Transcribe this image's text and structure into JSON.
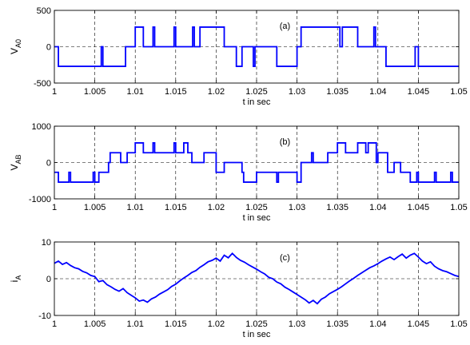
{
  "chart_data": [
    {
      "type": "line",
      "annotation": "(a)",
      "xlabel": "t in  sec",
      "ylabel": "V",
      "ylabel_sub": "A0",
      "xlim": [
        1,
        1.05
      ],
      "ylim": [
        -500,
        500
      ],
      "xticks": [
        1,
        1.005,
        1.01,
        1.015,
        1.02,
        1.025,
        1.03,
        1.035,
        1.04,
        1.045,
        1.05
      ],
      "xtick_labels": [
        "1",
        "1.005",
        "1.01",
        "1.015",
        "1.02",
        "1.025",
        "1.03",
        "1.035",
        "1.04",
        "1.045",
        "1.05"
      ],
      "yticks": [
        -500,
        0,
        500
      ],
      "ytick_labels": [
        "-500",
        "0",
        "500"
      ],
      "grid": true,
      "color": "#0000ff",
      "series": [
        {
          "x": [
            1.0,
            1.0005,
            1.0005,
            1.0058,
            1.0058,
            1.006,
            1.006,
            1.0088,
            1.0088,
            1.01,
            1.01,
            1.011,
            1.011,
            1.0122,
            1.0122,
            1.0124,
            1.0124,
            1.0148,
            1.0148,
            1.015,
            1.015,
            1.0171,
            1.0171,
            1.0173,
            1.0173,
            1.018,
            1.018,
            1.021,
            1.021,
            1.0225,
            1.0225,
            1.0232,
            1.0232,
            1.0246,
            1.0246,
            1.0248,
            1.0248,
            1.0275,
            1.0275,
            1.03,
            1.03,
            1.0305,
            1.0305,
            1.0353,
            1.0353,
            1.0356,
            1.0356,
            1.0375,
            1.0375,
            1.0395,
            1.0395,
            1.0397,
            1.0397,
            1.041,
            1.041,
            1.0446,
            1.0446,
            1.045,
            1.045,
            1.05
          ],
          "y": [
            0,
            0,
            -270,
            -270,
            0,
            0,
            -270,
            -270,
            0,
            0,
            270,
            270,
            0,
            0,
            270,
            270,
            0,
            0,
            270,
            270,
            0,
            0,
            270,
            270,
            0,
            0,
            270,
            270,
            0,
            0,
            -270,
            -270,
            0,
            0,
            -270,
            -270,
            0,
            0,
            -270,
            -270,
            0,
            0,
            270,
            270,
            0,
            0,
            270,
            270,
            0,
            0,
            270,
            270,
            0,
            0,
            -270,
            -270,
            0,
            0,
            -270,
            -270
          ]
        }
      ]
    },
    {
      "type": "line",
      "annotation": "(b)",
      "xlabel": "t in  sec",
      "ylabel": "V",
      "ylabel_sub": "AB",
      "xlim": [
        1,
        1.05
      ],
      "ylim": [
        -1000,
        1000
      ],
      "xticks": [
        1,
        1.005,
        1.01,
        1.015,
        1.02,
        1.025,
        1.03,
        1.035,
        1.04,
        1.045,
        1.05
      ],
      "xtick_labels": [
        "1",
        "1.005",
        "1.01",
        "1.015",
        "1.02",
        "1.025",
        "1.03",
        "1.035",
        "1.04",
        "1.045",
        "1.05"
      ],
      "yticks": [
        -1000,
        0,
        1000
      ],
      "ytick_labels": [
        "-1000",
        "0",
        "1000"
      ],
      "grid": true,
      "color": "#0000ff",
      "series": [
        {
          "x": [
            1.0,
            1.0005,
            1.0005,
            1.0018,
            1.0018,
            1.002,
            1.002,
            1.0048,
            1.0048,
            1.005,
            1.005,
            1.0055,
            1.0055,
            1.0067,
            1.0067,
            1.0069,
            1.0069,
            1.0082,
            1.0082,
            1.009,
            1.009,
            1.01,
            1.01,
            1.011,
            1.011,
            1.0122,
            1.0122,
            1.0124,
            1.0124,
            1.0148,
            1.0148,
            1.015,
            1.015,
            1.016,
            1.016,
            1.0165,
            1.0165,
            1.017,
            1.017,
            1.0185,
            1.0185,
            1.02,
            1.02,
            1.021,
            1.021,
            1.0232,
            1.0232,
            1.0234,
            1.0234,
            1.025,
            1.025,
            1.0275,
            1.0275,
            1.0277,
            1.0277,
            1.03,
            1.03,
            1.0305,
            1.0305,
            1.0318,
            1.0318,
            1.032,
            1.032,
            1.0338,
            1.0338,
            1.035,
            1.035,
            1.036,
            1.036,
            1.0375,
            1.0375,
            1.0385,
            1.0385,
            1.0388,
            1.0388,
            1.0398,
            1.0398,
            1.04,
            1.04,
            1.0412,
            1.0412,
            1.042,
            1.042,
            1.0428,
            1.0428,
            1.044,
            1.044,
            1.0448,
            1.0448,
            1.045,
            1.045,
            1.047,
            1.047,
            1.0472,
            1.0472,
            1.049,
            1.049,
            1.0492,
            1.0492,
            1.05
          ],
          "y": [
            -270,
            -270,
            -540,
            -540,
            -270,
            -270,
            -540,
            -540,
            -270,
            -270,
            -540,
            -540,
            -270,
            -270,
            0,
            0,
            270,
            270,
            0,
            0,
            270,
            270,
            540,
            540,
            270,
            270,
            540,
            540,
            270,
            270,
            540,
            540,
            270,
            270,
            540,
            540,
            270,
            270,
            0,
            0,
            270,
            270,
            -270,
            -270,
            0,
            0,
            -270,
            -270,
            -540,
            -540,
            -270,
            -270,
            -540,
            -540,
            -270,
            -270,
            -540,
            -540,
            0,
            0,
            270,
            270,
            0,
            0,
            270,
            270,
            540,
            540,
            270,
            270,
            540,
            540,
            270,
            270,
            540,
            540,
            0,
            0,
            270,
            270,
            -270,
            -270,
            0,
            0,
            -270,
            -270,
            -540,
            -540,
            -270,
            -270,
            -540,
            -540,
            -270,
            -270,
            -540,
            -540,
            -270,
            -270,
            -540,
            -540
          ]
        }
      ]
    },
    {
      "type": "line",
      "annotation": "(c)",
      "xlabel": "t in  sec",
      "ylabel": "i",
      "ylabel_sub": "A",
      "xlim": [
        1,
        1.05
      ],
      "ylim": [
        -10,
        10
      ],
      "xticks": [
        1,
        1.005,
        1.01,
        1.015,
        1.02,
        1.025,
        1.03,
        1.035,
        1.04,
        1.045,
        1.05
      ],
      "xtick_labels": [
        "1",
        "1.005",
        "1.01",
        "1.015",
        "1.02",
        "1.025",
        "1.03",
        "1.035",
        "1.04",
        "1.045",
        "1.05"
      ],
      "yticks": [
        -10,
        0,
        10
      ],
      "ytick_labels": [
        "-10",
        "0",
        "10"
      ],
      "grid": true,
      "color": "#0000ff",
      "series": [
        {
          "x": [
            1.0,
            1.0005,
            1.001,
            1.0015,
            1.002,
            1.0025,
            1.003,
            1.0035,
            1.004,
            1.0045,
            1.005,
            1.0055,
            1.006,
            1.0065,
            1.007,
            1.0075,
            1.008,
            1.0085,
            1.009,
            1.0095,
            1.01,
            1.0105,
            1.011,
            1.0115,
            1.012,
            1.0125,
            1.013,
            1.0135,
            1.014,
            1.0145,
            1.015,
            1.0155,
            1.016,
            1.0165,
            1.017,
            1.0175,
            1.018,
            1.0185,
            1.019,
            1.0195,
            1.02,
            1.0205,
            1.021,
            1.0215,
            1.022,
            1.0225,
            1.023,
            1.0235,
            1.024,
            1.0245,
            1.025,
            1.0255,
            1.026,
            1.0265,
            1.027,
            1.0275,
            1.028,
            1.0285,
            1.029,
            1.0295,
            1.03,
            1.0305,
            1.031,
            1.0315,
            1.032,
            1.0325,
            1.033,
            1.0335,
            1.034,
            1.0345,
            1.035,
            1.0355,
            1.036,
            1.0365,
            1.037,
            1.0375,
            1.038,
            1.0385,
            1.039,
            1.0395,
            1.04,
            1.0405,
            1.041,
            1.0415,
            1.042,
            1.0425,
            1.043,
            1.0435,
            1.044,
            1.0445,
            1.045,
            1.0455,
            1.046,
            1.0465,
            1.047,
            1.0475,
            1.048,
            1.0485,
            1.049,
            1.0495,
            1.05
          ],
          "y": [
            4.2,
            4.8,
            3.9,
            4.4,
            3.6,
            3.0,
            2.7,
            2.0,
            1.6,
            0.9,
            0.6,
            -0.8,
            -0.5,
            -1.6,
            -2.2,
            -2.9,
            -3.4,
            -2.7,
            -3.8,
            -4.5,
            -5.2,
            -6.1,
            -5.8,
            -6.4,
            -5.5,
            -5.0,
            -4.2,
            -3.6,
            -3.0,
            -2.1,
            -1.5,
            -0.6,
            0.2,
            0.9,
            1.7,
            2.2,
            3.1,
            3.8,
            4.6,
            5.0,
            5.6,
            4.8,
            6.4,
            5.7,
            6.9,
            5.8,
            5.0,
            4.5,
            3.8,
            3.2,
            2.6,
            1.9,
            1.3,
            0.4,
            0.0,
            -0.9,
            -1.4,
            -2.3,
            -2.9,
            -3.6,
            -4.3,
            -5.0,
            -5.7,
            -6.6,
            -5.9,
            -6.8,
            -5.6,
            -5.0,
            -4.1,
            -3.5,
            -2.9,
            -2.2,
            -1.4,
            -0.6,
            0.1,
            0.9,
            1.6,
            2.3,
            3.0,
            3.5,
            4.1,
            4.8,
            5.4,
            5.9,
            5.2,
            6.0,
            6.7,
            5.6,
            6.4,
            6.9,
            5.9,
            4.8,
            4.1,
            4.6,
            3.4,
            2.7,
            2.2,
            1.9,
            1.4,
            0.9,
            0.6
          ]
        }
      ]
    }
  ]
}
